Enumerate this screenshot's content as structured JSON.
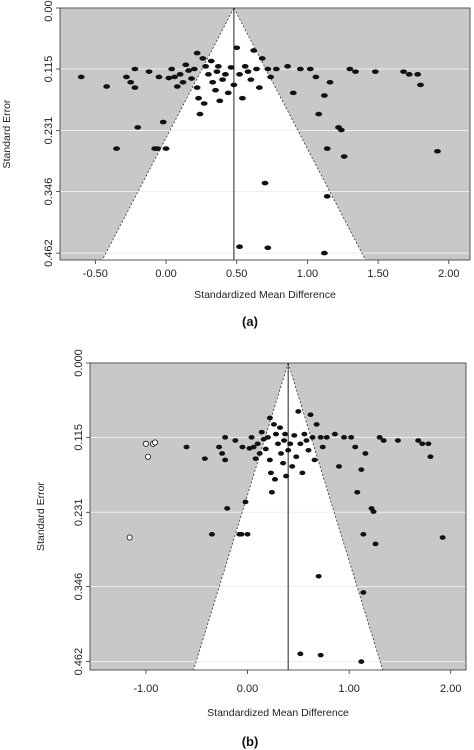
{
  "colors": {
    "plot_background": "#c8c8c8",
    "funnel_fill": "#ffffff",
    "gridline": "#eeeeee",
    "observed_point": "#111111",
    "imputed_point_fill": "#ffffff",
    "axis_line": "#333333"
  },
  "chart_data": [
    {
      "type": "scatter",
      "panel_label": "(a)",
      "xlabel": "Standardized Mean Difference",
      "ylabel": "Standard Error",
      "xlim": [
        -0.75,
        2.15
      ],
      "ylim": [
        0.0,
        0.475
      ],
      "y_reversed": true,
      "grid": true,
      "x_ticks": [
        {
          "value": -0.5,
          "label": "-0.50"
        },
        {
          "value": 0.0,
          "label": "0.00"
        },
        {
          "value": 0.5,
          "label": "0.50"
        },
        {
          "value": 1.0,
          "label": "1.00"
        },
        {
          "value": 1.5,
          "label": "1.50"
        },
        {
          "value": 2.0,
          "label": "2.00"
        }
      ],
      "y_ticks": [
        {
          "value": 0.0,
          "label": "0.000"
        },
        {
          "value": 0.115,
          "label": "0.115"
        },
        {
          "value": 0.231,
          "label": "0.231"
        },
        {
          "value": 0.346,
          "label": "0.346"
        },
        {
          "value": 0.462,
          "label": "0.462"
        }
      ],
      "funnel": {
        "center": 0.48,
        "apex_se": 0.0,
        "base_se": 0.475,
        "half_width_per_se": 1.96
      },
      "series": [
        {
          "kind": "observed",
          "points": [
            [
              -0.6,
              0.13
            ],
            [
              -0.42,
              0.148
            ],
            [
              -0.35,
              0.265
            ],
            [
              -0.28,
              0.13
            ],
            [
              -0.25,
              0.14
            ],
            [
              -0.22,
              0.115
            ],
            [
              -0.22,
              0.15
            ],
            [
              -0.2,
              0.225
            ],
            [
              -0.12,
              0.12
            ],
            [
              -0.08,
              0.265
            ],
            [
              -0.06,
              0.265
            ],
            [
              -0.05,
              0.13
            ],
            [
              -0.02,
              0.215
            ],
            [
              0.0,
              0.265
            ],
            [
              0.02,
              0.132
            ],
            [
              0.04,
              0.115
            ],
            [
              0.06,
              0.13
            ],
            [
              0.08,
              0.148
            ],
            [
              0.1,
              0.125
            ],
            [
              0.12,
              0.14
            ],
            [
              0.14,
              0.107
            ],
            [
              0.16,
              0.118
            ],
            [
              0.18,
              0.133
            ],
            [
              0.2,
              0.115
            ],
            [
              0.22,
              0.085
            ],
            [
              0.22,
              0.15
            ],
            [
              0.23,
              0.17
            ],
            [
              0.24,
              0.2
            ],
            [
              0.26,
              0.095
            ],
            [
              0.27,
              0.18
            ],
            [
              0.28,
              0.11
            ],
            [
              0.3,
              0.125
            ],
            [
              0.32,
              0.1
            ],
            [
              0.33,
              0.14
            ],
            [
              0.35,
              0.155
            ],
            [
              0.36,
              0.12
            ],
            [
              0.37,
              0.11
            ],
            [
              0.38,
              0.175
            ],
            [
              0.4,
              0.135
            ],
            [
              0.42,
              0.125
            ],
            [
              0.44,
              0.16
            ],
            [
              0.46,
              0.112
            ],
            [
              0.48,
              0.145
            ],
            [
              0.5,
              0.075
            ],
            [
              0.52,
              0.125
            ],
            [
              0.54,
              0.17
            ],
            [
              0.56,
              0.11
            ],
            [
              0.58,
              0.12
            ],
            [
              0.6,
              0.135
            ],
            [
              0.62,
              0.08
            ],
            [
              0.64,
              0.115
            ],
            [
              0.66,
              0.15
            ],
            [
              0.68,
              0.095
            ],
            [
              0.72,
              0.115
            ],
            [
              0.74,
              0.13
            ],
            [
              0.78,
              0.115
            ],
            [
              0.86,
              0.11
            ],
            [
              0.9,
              0.16
            ],
            [
              0.95,
              0.115
            ],
            [
              1.02,
              0.115
            ],
            [
              1.06,
              0.13
            ],
            [
              1.08,
              0.2
            ],
            [
              1.12,
              0.165
            ],
            [
              1.14,
              0.265
            ],
            [
              1.16,
              0.14
            ],
            [
              1.22,
              0.225
            ],
            [
              1.24,
              0.23
            ],
            [
              1.26,
              0.28
            ],
            [
              1.3,
              0.115
            ],
            [
              1.34,
              0.12
            ],
            [
              1.48,
              0.12
            ],
            [
              1.68,
              0.12
            ],
            [
              1.72,
              0.125
            ],
            [
              1.78,
              0.125
            ],
            [
              1.8,
              0.145
            ],
            [
              1.92,
              0.27
            ],
            [
              1.14,
              0.355
            ],
            [
              0.7,
              0.33
            ],
            [
              0.52,
              0.45
            ],
            [
              0.72,
              0.452
            ],
            [
              1.12,
              0.462
            ]
          ]
        }
      ]
    },
    {
      "type": "scatter",
      "panel_label": "(b)",
      "xlabel": "Standardized Mean Difference",
      "ylabel": "Standard Error",
      "xlim": [
        -1.55,
        2.15
      ],
      "ylim": [
        0.0,
        0.475
      ],
      "y_reversed": true,
      "grid": true,
      "x_ticks": [
        {
          "value": -1.0,
          "label": "-1.00"
        },
        {
          "value": 0.0,
          "label": "0.00"
        },
        {
          "value": 1.0,
          "label": "1.00"
        },
        {
          "value": 2.0,
          "label": "2.00"
        }
      ],
      "y_ticks": [
        {
          "value": 0.0,
          "label": "0.000"
        },
        {
          "value": 0.115,
          "label": "0.115"
        },
        {
          "value": 0.231,
          "label": "0.231"
        },
        {
          "value": 0.346,
          "label": "0.346"
        },
        {
          "value": 0.462,
          "label": "0.462"
        }
      ],
      "funnel": {
        "center": 0.4,
        "apex_se": 0.0,
        "base_se": 0.475,
        "half_width_per_se": 1.96
      },
      "series": [
        {
          "kind": "observed",
          "points": [
            [
              -0.6,
              0.13
            ],
            [
              -0.42,
              0.148
            ],
            [
              -0.35,
              0.265
            ],
            [
              -0.28,
              0.13
            ],
            [
              -0.25,
              0.14
            ],
            [
              -0.22,
              0.115
            ],
            [
              -0.22,
              0.15
            ],
            [
              -0.2,
              0.225
            ],
            [
              -0.12,
              0.12
            ],
            [
              -0.08,
              0.265
            ],
            [
              -0.06,
              0.265
            ],
            [
              -0.05,
              0.13
            ],
            [
              -0.02,
              0.215
            ],
            [
              0.0,
              0.265
            ],
            [
              0.02,
              0.132
            ],
            [
              0.04,
              0.115
            ],
            [
              0.06,
              0.13
            ],
            [
              0.08,
              0.148
            ],
            [
              0.1,
              0.125
            ],
            [
              0.12,
              0.14
            ],
            [
              0.14,
              0.107
            ],
            [
              0.16,
              0.118
            ],
            [
              0.18,
              0.133
            ],
            [
              0.2,
              0.115
            ],
            [
              0.22,
              0.085
            ],
            [
              0.22,
              0.15
            ],
            [
              0.23,
              0.17
            ],
            [
              0.24,
              0.2
            ],
            [
              0.26,
              0.095
            ],
            [
              0.27,
              0.18
            ],
            [
              0.28,
              0.11
            ],
            [
              0.3,
              0.125
            ],
            [
              0.32,
              0.1
            ],
            [
              0.33,
              0.14
            ],
            [
              0.35,
              0.155
            ],
            [
              0.36,
              0.12
            ],
            [
              0.37,
              0.11
            ],
            [
              0.38,
              0.175
            ],
            [
              0.4,
              0.135
            ],
            [
              0.42,
              0.125
            ],
            [
              0.44,
              0.16
            ],
            [
              0.46,
              0.112
            ],
            [
              0.48,
              0.145
            ],
            [
              0.5,
              0.075
            ],
            [
              0.52,
              0.125
            ],
            [
              0.54,
              0.17
            ],
            [
              0.56,
              0.11
            ],
            [
              0.58,
              0.12
            ],
            [
              0.6,
              0.135
            ],
            [
              0.62,
              0.08
            ],
            [
              0.64,
              0.115
            ],
            [
              0.66,
              0.15
            ],
            [
              0.68,
              0.095
            ],
            [
              0.72,
              0.115
            ],
            [
              0.74,
              0.13
            ],
            [
              0.78,
              0.115
            ],
            [
              0.86,
              0.11
            ],
            [
              0.9,
              0.16
            ],
            [
              0.95,
              0.115
            ],
            [
              1.02,
              0.115
            ],
            [
              1.06,
              0.13
            ],
            [
              1.08,
              0.2
            ],
            [
              1.12,
              0.165
            ],
            [
              1.14,
              0.265
            ],
            [
              1.16,
              0.14
            ],
            [
              1.22,
              0.225
            ],
            [
              1.24,
              0.23
            ],
            [
              1.26,
              0.28
            ],
            [
              1.3,
              0.115
            ],
            [
              1.34,
              0.12
            ],
            [
              1.48,
              0.12
            ],
            [
              1.68,
              0.12
            ],
            [
              1.72,
              0.125
            ],
            [
              1.78,
              0.125
            ],
            [
              1.8,
              0.145
            ],
            [
              1.92,
              0.27
            ],
            [
              1.14,
              0.355
            ],
            [
              0.7,
              0.33
            ],
            [
              0.52,
              0.45
            ],
            [
              0.72,
              0.452
            ],
            [
              1.12,
              0.462
            ]
          ]
        },
        {
          "kind": "imputed",
          "points": [
            [
              -1.0,
              0.125
            ],
            [
              -0.98,
              0.145
            ],
            [
              -0.93,
              0.125
            ],
            [
              -0.91,
              0.123
            ],
            [
              -1.16,
              0.27
            ]
          ]
        }
      ]
    }
  ]
}
